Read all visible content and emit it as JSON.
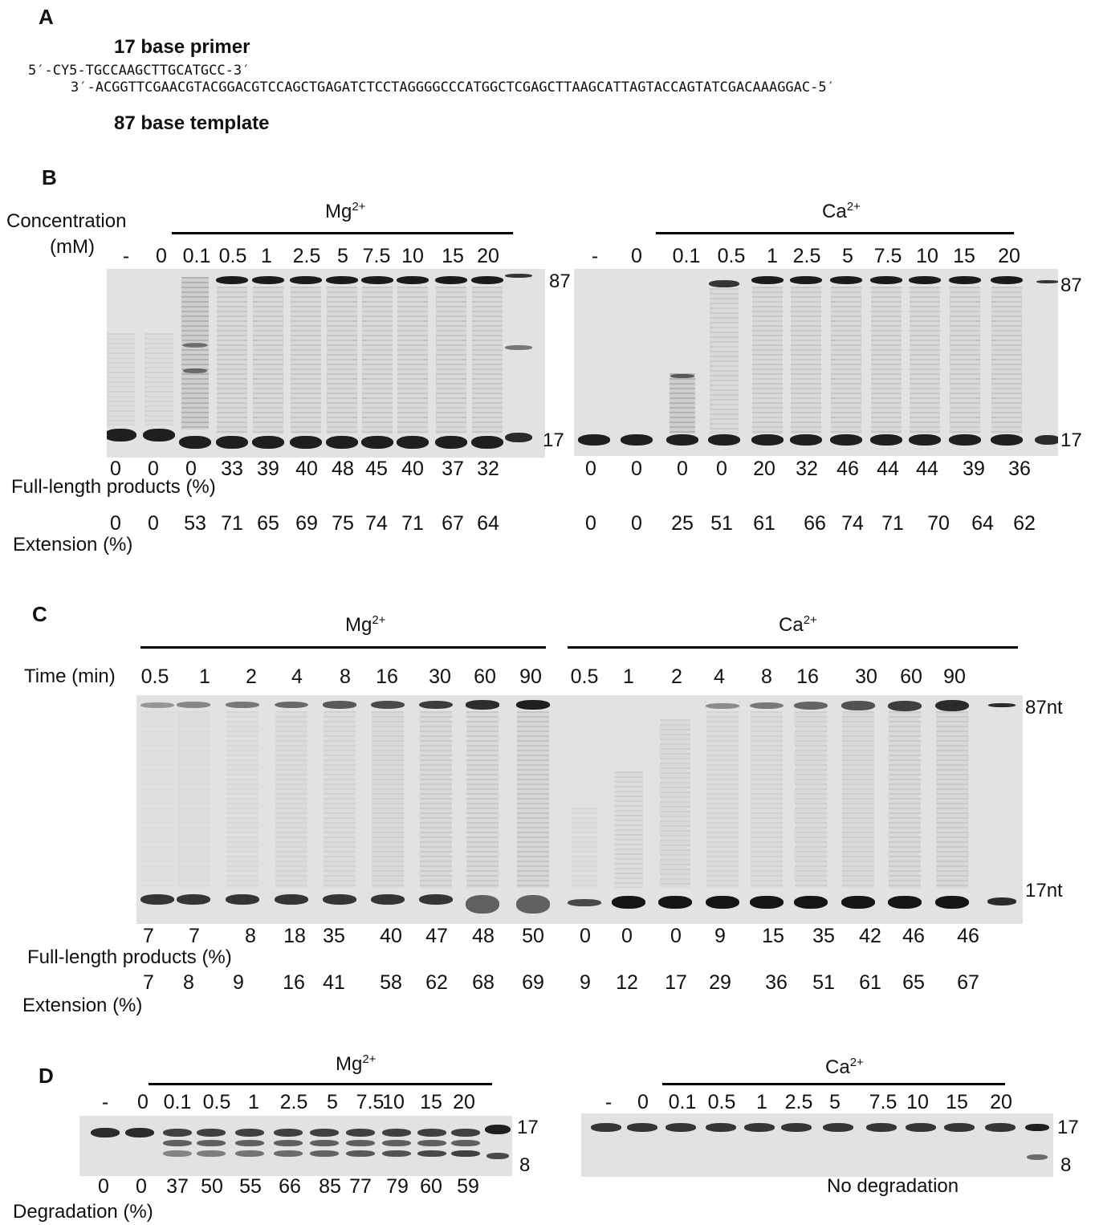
{
  "panelA": {
    "label": "A",
    "primer_title": "17 base primer",
    "primer_seq": "5′-CY5-TGCCAAGCTTGCATGCC-3′",
    "template_seq": "3′-ACGGTTCGAACGTACGGACGTCCAGCTGAGATCTCCTAGGGGCCCATGGCTCGAGCTTAAGCATTAGTACCAGTATCGACAAAGGAC-5′",
    "template_title": "87 base template"
  },
  "panelB": {
    "label": "B",
    "conc_label_1": "Concentration",
    "conc_label_2": "(mM)",
    "mg_label": "Mg",
    "ca_label": "Ca",
    "ion_charge": "2+",
    "mg_lanes": [
      "-",
      "0",
      "0.1",
      "0.5",
      "1",
      "2.5",
      "5",
      "7.5",
      "10",
      "15",
      "20"
    ],
    "ca_lanes": [
      "-",
      "0",
      "0.1",
      "0.5",
      "1",
      "2.5",
      "5",
      "7.5",
      "10",
      "15",
      "20"
    ],
    "marker_top": "87",
    "marker_bottom": "17",
    "mg_full_length": [
      "0",
      "0",
      "0",
      "33",
      "39",
      "40",
      "48",
      "45",
      "40",
      "37",
      "32"
    ],
    "ca_full_length": [
      "0",
      "0",
      "0",
      "0",
      "20",
      "32",
      "46",
      "44",
      "44",
      "39",
      "36"
    ],
    "full_length_label": "Full-length products (%)",
    "mg_extension": [
      "0",
      "0",
      "53",
      "71",
      "65",
      "69",
      "75",
      "74",
      "71",
      "67",
      "64"
    ],
    "ca_extension": [
      "0",
      "0",
      "25",
      "51",
      "61",
      "66",
      "74",
      "71",
      "70",
      "64",
      "62"
    ],
    "extension_label": "Extension (%)"
  },
  "panelC": {
    "label": "C",
    "mg_label": "Mg",
    "ca_label": "Ca",
    "ion_charge": "2+",
    "time_label": "Time (min)",
    "mg_times": [
      "0.5",
      "1",
      "2",
      "4",
      "8",
      "16",
      "30",
      "60",
      "90"
    ],
    "ca_times": [
      "0.5",
      "1",
      "2",
      "4",
      "8",
      "16",
      "30",
      "60",
      "90"
    ],
    "marker_top": "87nt",
    "marker_bottom": "17nt",
    "mg_full_length": [
      "7",
      "7",
      "8",
      "18",
      "35",
      "40",
      "47",
      "48",
      "50"
    ],
    "ca_full_length": [
      "0",
      "0",
      "0",
      "9",
      "15",
      "35",
      "42",
      "46",
      "46"
    ],
    "full_length_label": "Full-length products (%)",
    "mg_extension": [
      "7",
      "8",
      "9",
      "16",
      "41",
      "58",
      "62",
      "68",
      "69"
    ],
    "ca_extension": [
      "9",
      "12",
      "17",
      "29",
      "36",
      "51",
      "61",
      "65",
      "67"
    ],
    "extension_label": "Extension (%)"
  },
  "panelD": {
    "label": "D",
    "mg_label": "Mg",
    "ca_label": "Ca",
    "ion_charge": "2+",
    "mg_lanes": [
      "-",
      "0",
      "0.1",
      "0.5",
      "1",
      "2.5",
      "5",
      "7.5",
      "10",
      "15",
      "20"
    ],
    "ca_lanes": [
      "-",
      "0",
      "0.1",
      "0.5",
      "1",
      "2.5",
      "5",
      "7.5",
      "10",
      "15",
      "20"
    ],
    "marker_top": "17",
    "marker_bottom": "8",
    "mg_degradation": [
      "0",
      "0",
      "37",
      "50",
      "55",
      "66",
      "85",
      "77",
      "79",
      "60",
      "59"
    ],
    "degradation_label": "Degradation (%)",
    "ca_note": "No degradation"
  }
}
